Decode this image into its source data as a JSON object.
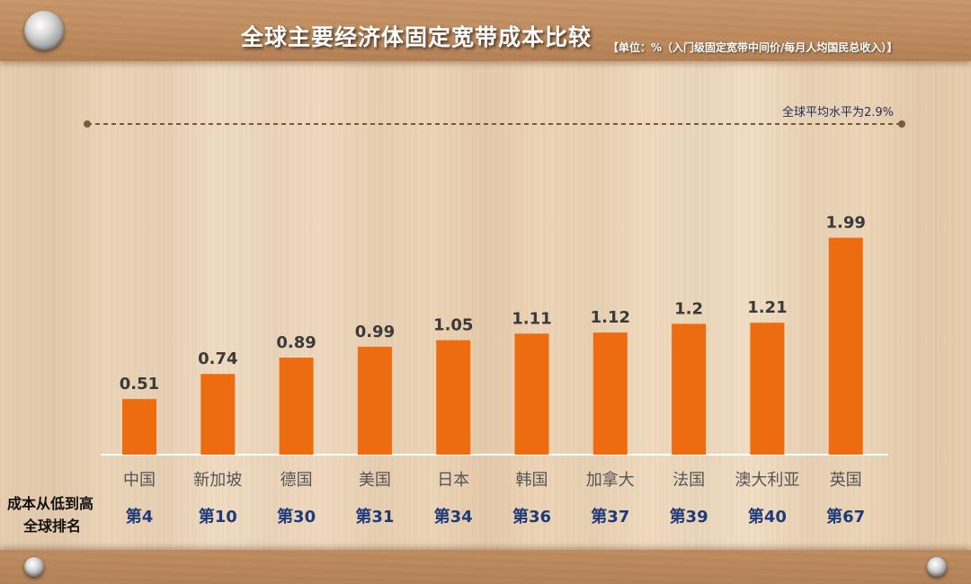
{
  "title": "全球主要经济体固定宽带成本比较",
  "unit_note": "【单位：%（入门级固定宽带中间价/每月人均国民总收入）】",
  "reference_line": {
    "label": "全球平均水平为2.9%",
    "value": 2.9
  },
  "row_labels": {
    "cost": "成本从低到高",
    "rank": "全球排名"
  },
  "colors": {
    "bar": "#ee6c10",
    "value_text": "#3a3a3a",
    "category_text": "#555555",
    "rank_text": "#1f3a7a",
    "reference_line": "#7a5a3a"
  },
  "chart_data": {
    "type": "bar",
    "title": "全球主要经济体固定宽带成本比较",
    "categories": [
      "中国",
      "新加坡",
      "德国",
      "美国",
      "日本",
      "韩国",
      "加拿大",
      "法国",
      "澳大利亚",
      "英国"
    ],
    "values": [
      0.51,
      0.74,
      0.89,
      0.99,
      1.05,
      1.11,
      1.12,
      1.2,
      1.21,
      1.99
    ],
    "value_labels": [
      "0.51",
      "0.74",
      "0.89",
      "0.99",
      "1.05",
      "1.11",
      "1.12",
      "1.2",
      "1.21",
      "1.99"
    ],
    "ranks": [
      "第4",
      "第10",
      "第30",
      "第31",
      "第34",
      "第36",
      "第37",
      "第39",
      "第40",
      "第67"
    ],
    "xlabel": "",
    "ylabel": "",
    "grid": false
  }
}
